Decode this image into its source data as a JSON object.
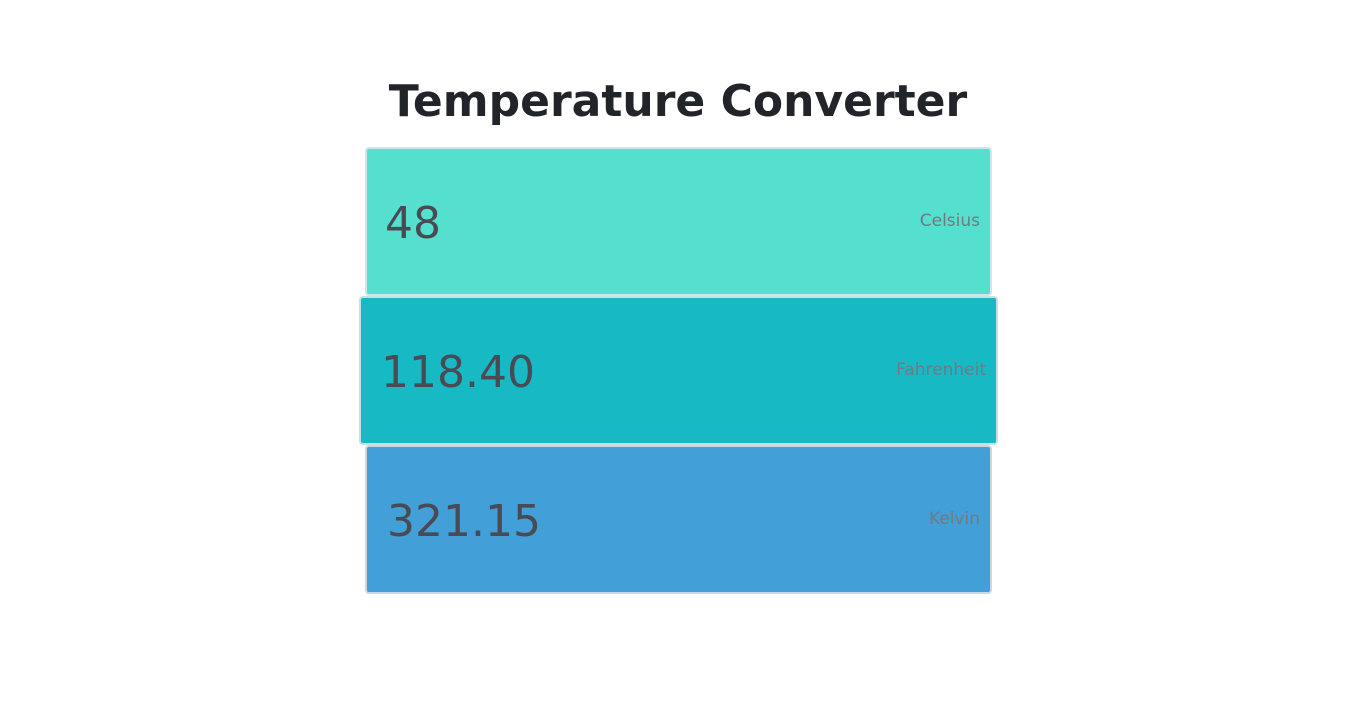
{
  "page": {
    "title": "Temperature Converter"
  },
  "fields": {
    "celsius": {
      "value": "48",
      "unit": "Celsius",
      "color": "#55dfcf"
    },
    "fahrenheit": {
      "value": "118.40",
      "unit": "Fahrenheit",
      "color": "#17b9c5"
    },
    "kelvin": {
      "value": "321.15",
      "unit": "Kelvin",
      "color": "#429fd8"
    }
  }
}
